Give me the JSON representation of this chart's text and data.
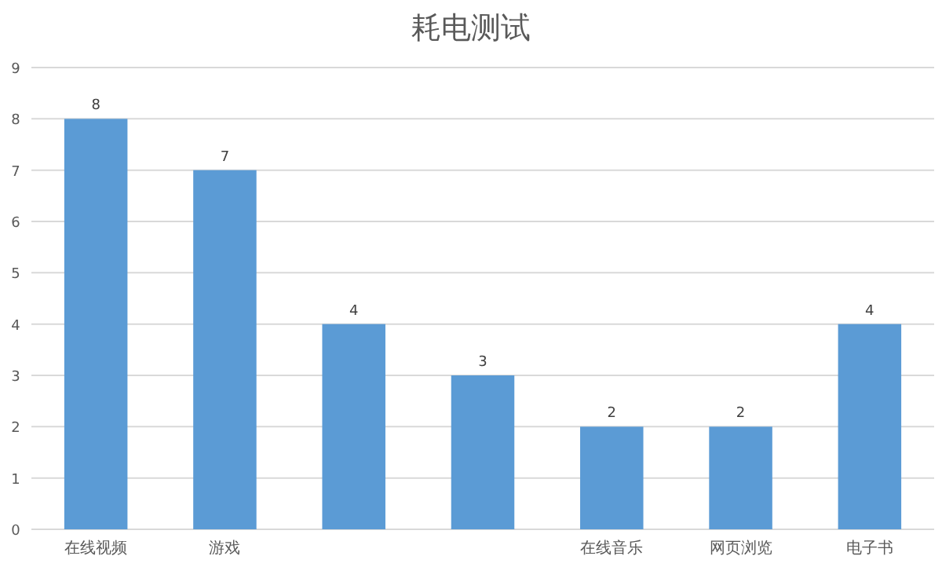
{
  "chart_data": {
    "type": "bar",
    "title": "耗电测试",
    "categories": [
      "在线视频",
      "游戏",
      null,
      null,
      "在线音乐",
      "网页浏览",
      "电子书"
    ],
    "values": [
      8,
      7,
      4,
      3,
      2,
      2,
      4
    ],
    "color": "#5b9bd5",
    "ylim": [
      0,
      9
    ],
    "yticks": [
      0,
      1,
      2,
      3,
      4,
      5,
      6,
      7,
      8,
      9
    ],
    "grid": "y",
    "data_labels": true
  }
}
